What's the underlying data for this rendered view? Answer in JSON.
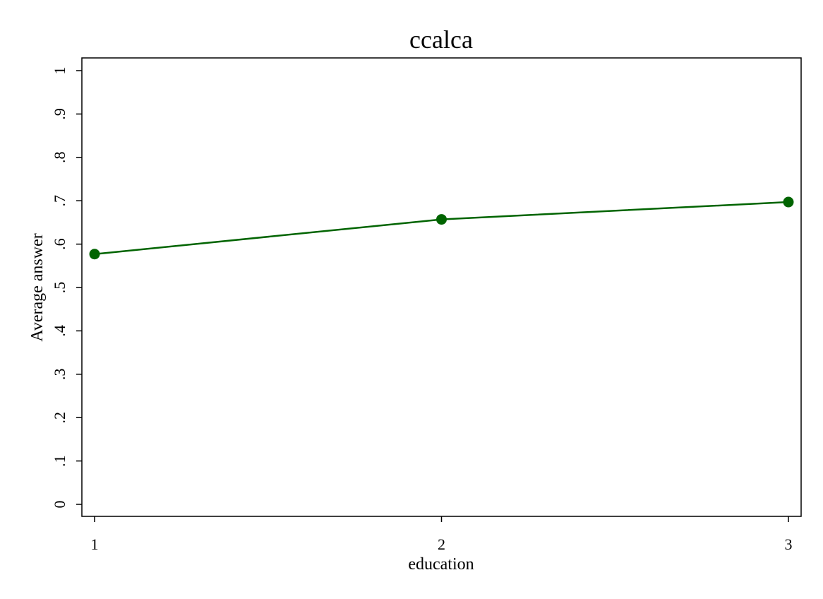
{
  "chart_data": {
    "type": "line",
    "title": "ccalca",
    "xlabel": "education",
    "ylabel": "Average answer",
    "x": [
      1,
      2,
      3
    ],
    "x_tick_labels": [
      "1",
      "2",
      "3"
    ],
    "y_ticks": [
      0,
      0.1,
      0.2,
      0.3,
      0.4,
      0.5,
      0.6,
      0.7,
      0.8,
      0.9,
      1
    ],
    "y_tick_labels": [
      "0",
      ".1",
      ".2",
      ".3",
      ".4",
      ".5",
      ".6",
      ".7",
      ".8",
      ".9",
      "1"
    ],
    "xlim": [
      1,
      3
    ],
    "ylim": [
      0,
      1
    ],
    "grid": false,
    "legend": "none",
    "series": [
      {
        "values": [
          0.577,
          0.657,
          0.697
        ],
        "color": "#006400"
      }
    ]
  }
}
